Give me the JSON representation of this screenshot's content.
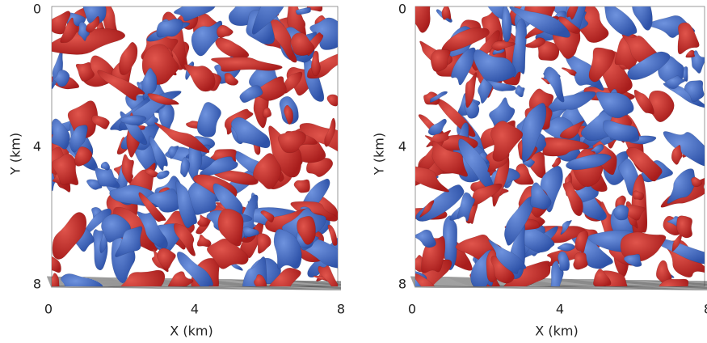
{
  "panels": [
    {
      "x_label": "X (km)",
      "y_label": "Y (km)",
      "x_ticks": [
        0,
        4,
        8
      ],
      "y_ticks": [
        0,
        4,
        8
      ]
    },
    {
      "x_label": "X (km)",
      "y_label": "Y (km)",
      "x_ticks": [
        0,
        4,
        8
      ],
      "y_ticks": [
        0,
        4,
        8
      ]
    }
  ]
}
